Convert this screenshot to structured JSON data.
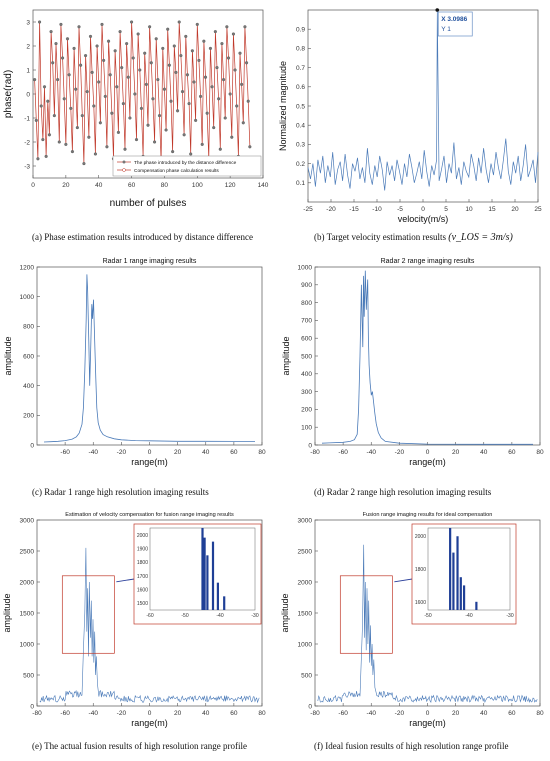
{
  "captions": {
    "a": "(a) Phase estimation results introduced by distance difference",
    "b": "(b) Target velocity estimation results",
    "b_formula": "(v_LOS = 3m/s)",
    "c": "(c) Radar 1 range high resolution imaging results",
    "d": "(d) Radar 2 range high resolution imaging results",
    "e": "(e) The actual fusion results of high resolution range profile",
    "f": "(f) Ideal fusion results of high resolution range profile"
  },
  "colors": {
    "line": "#4a7ab8",
    "red": "#c0392b",
    "mark": "#777777",
    "zoom_bar": "#1f3f96"
  },
  "chart_data": [
    {
      "id": "a",
      "type": "line",
      "title": "",
      "xlabel": "number of pulses",
      "ylabel": "phase(rad)",
      "xlim": [
        0,
        140
      ],
      "ylim": [
        -3.5,
        3.5
      ],
      "xticks": [
        0,
        20,
        40,
        60,
        80,
        100,
        120,
        140
      ],
      "yticks": [
        -3,
        -2,
        -1,
        0,
        1,
        2,
        3
      ],
      "series": [
        {
          "name": "The phase introduced by the distance difference",
          "style": "markers",
          "values": [
            0.6,
            -1.1,
            -2.7,
            3.0,
            -0.5,
            -1.9,
            0.3,
            -2.6,
            -0.3,
            -1.7,
            2.6,
            1.3,
            -0.9,
            2.1,
            0.6,
            -2.0,
            2.9,
            1.5,
            -0.2,
            -2.1,
            2.3,
            0.8,
            -0.6,
            -2.4,
            1.9,
            0.2,
            -1.4,
            2.8,
            1.2,
            -0.9,
            -2.9,
            1.6,
            0.1,
            -1.8,
            2.4,
            0.9,
            -0.5,
            -2.5,
            2.0,
            0.5,
            -1.2,
            2.9,
            1.4,
            -0.1,
            -2.2,
            2.2,
            0.8,
            -0.8,
            -2.7,
            1.8,
            0.3,
            -1.6,
            2.6,
            1.1,
            -0.4,
            -2.3,
            2.1,
            0.7,
            -1.0,
            3.0,
            1.5,
            0.0,
            -1.9,
            2.5,
            1.0,
            -0.6,
            -2.6,
            1.7,
            0.4,
            -1.3,
            2.8,
            1.3,
            -0.2,
            -2.0,
            2.3,
            0.6,
            -0.9,
            -2.8,
            1.9,
            0.2,
            -1.5,
            2.7,
            1.2,
            -0.3,
            -2.4,
            2.0,
            0.9,
            -0.7,
            3.0,
            1.6,
            0.1,
            -1.7,
            2.4,
            0.8,
            -0.4,
            -2.5,
            1.8,
            0.5,
            -1.1,
            2.9,
            1.4,
            -0.1,
            -2.1,
            2.2,
            0.7,
            -0.8,
            -2.7,
            1.9,
            0.3,
            -1.4,
            2.6,
            1.1,
            -0.2,
            -2.3,
            2.1,
            0.6,
            -1.0,
            2.8,
            1.5,
            0.0,
            -1.8,
            2.5,
            1.0,
            -0.5,
            -2.6,
            1.7,
            0.4,
            -1.2,
            2.8,
            1.3,
            -0.3,
            -2.2
          ]
        },
        {
          "name": "Compensation phase calculation results",
          "style": "line"
        }
      ],
      "legend": "bottom-right"
    },
    {
      "id": "b",
      "type": "line",
      "title": "",
      "xlabel": "velocity(m/s)",
      "ylabel": "Normalized magnitude",
      "xlim": [
        -25,
        25
      ],
      "ylim": [
        0,
        1
      ],
      "xticks": [
        -25,
        -20,
        -15,
        -10,
        -5,
        0,
        5,
        10,
        15,
        20,
        25
      ],
      "yticks": [
        0.1,
        0.2,
        0.3,
        0.4,
        0.5,
        0.6,
        0.7,
        0.8,
        0.9
      ],
      "peak": {
        "x": 3.0986,
        "y": 1
      },
      "datatip": {
        "x_label": "X 3.0986",
        "y_label": "Y 1"
      },
      "noise": [
        0.18,
        0.12,
        0.2,
        0.08,
        0.22,
        0.15,
        0.24,
        0.1,
        0.19,
        0.13,
        0.26,
        0.09,
        0.17,
        0.21,
        0.11,
        0.25,
        0.14,
        0.07,
        0.2,
        0.16,
        0.23,
        0.12,
        0.18,
        0.1,
        0.28,
        0.15,
        0.09,
        0.19,
        0.13,
        0.24,
        0.17,
        0.06,
        0.21,
        0.14,
        0.19,
        0.11,
        0.22,
        0.16,
        0.09,
        0.2,
        0.13,
        0.25,
        0.18,
        0.1,
        0.15,
        0.21,
        0.12,
        0.27,
        0.16,
        0.08,
        0.19,
        0.14,
        0.22,
        0.11,
        0.17,
        0.24,
        0.1,
        0.2,
        0.15,
        0.31,
        0.12,
        0.18,
        0.09,
        0.21,
        0.16,
        0.13,
        0.25,
        0.19,
        0.11,
        0.23,
        0.15,
        0.28,
        0.17,
        0.1,
        0.2,
        0.14,
        0.26,
        0.18,
        0.12,
        0.22,
        0.33,
        0.16,
        0.09,
        0.21,
        0.15,
        0.24,
        0.11,
        0.19,
        0.3,
        0.13,
        0.17,
        0.22,
        0.1,
        0.26
      ]
    },
    {
      "id": "c",
      "type": "line",
      "title": "Radar 1 range imaging results",
      "xlabel": "range(m)",
      "ylabel": "amplitude",
      "xlim": [
        -80,
        80
      ],
      "ylim": [
        0,
        1200
      ],
      "xticks": [
        -60,
        -40,
        -20,
        0,
        20,
        40,
        60,
        80
      ],
      "yticks": [
        0,
        200,
        400,
        600,
        800,
        1000,
        1200
      ],
      "points": [
        [
          -75,
          20
        ],
        [
          -70,
          22
        ],
        [
          -65,
          25
        ],
        [
          -60,
          30
        ],
        [
          -55,
          40
        ],
        [
          -52,
          55
        ],
        [
          -50,
          80
        ],
        [
          -48,
          140
        ],
        [
          -47,
          250
        ],
        [
          -46,
          500
        ],
        [
          -45,
          850
        ],
        [
          -44.5,
          1150
        ],
        [
          -44,
          1050
        ],
        [
          -43.2,
          700
        ],
        [
          -42.5,
          400
        ],
        [
          -41.8,
          650
        ],
        [
          -41,
          950
        ],
        [
          -40.5,
          850
        ],
        [
          -39.8,
          980
        ],
        [
          -39,
          700
        ],
        [
          -38.2,
          450
        ],
        [
          -37.5,
          250
        ],
        [
          -36.5,
          150
        ],
        [
          -35,
          100
        ],
        [
          -33,
          70
        ],
        [
          -30,
          55
        ],
        [
          -25,
          42
        ],
        [
          -20,
          35
        ],
        [
          -10,
          30
        ],
        [
          0,
          28
        ],
        [
          20,
          25
        ],
        [
          40,
          25
        ],
        [
          60,
          24
        ],
        [
          75,
          24
        ]
      ]
    },
    {
      "id": "d",
      "type": "line",
      "title": "Radar 2 range imaging results",
      "xlabel": "range(m)",
      "ylabel": "amplitude",
      "xlim": [
        -80,
        80
      ],
      "ylim": [
        0,
        1000
      ],
      "xticks": [
        -80,
        -60,
        -40,
        -20,
        0,
        20,
        40,
        60,
        80
      ],
      "yticks": [
        0,
        100,
        200,
        300,
        400,
        500,
        600,
        700,
        800,
        900,
        1000
      ],
      "points": [
        [
          -75,
          10
        ],
        [
          -70,
          12
        ],
        [
          -60,
          15
        ],
        [
          -55,
          20
        ],
        [
          -52,
          30
        ],
        [
          -50,
          60
        ],
        [
          -49,
          200
        ],
        [
          -48,
          500
        ],
        [
          -47,
          900
        ],
        [
          -46.5,
          700
        ],
        [
          -46,
          550
        ],
        [
          -45.5,
          950
        ],
        [
          -45,
          720
        ],
        [
          -44.2,
          980
        ],
        [
          -43.5,
          760
        ],
        [
          -43,
          850
        ],
        [
          -42.5,
          930
        ],
        [
          -42,
          600
        ],
        [
          -41.5,
          450
        ],
        [
          -40.8,
          350
        ],
        [
          -40,
          280
        ],
        [
          -39.2,
          300
        ],
        [
          -38.5,
          250
        ],
        [
          -37.5,
          180
        ],
        [
          -36.5,
          120
        ],
        [
          -35,
          70
        ],
        [
          -33,
          40
        ],
        [
          -30,
          20
        ],
        [
          -20,
          10
        ],
        [
          0,
          5
        ],
        [
          40,
          4
        ],
        [
          75,
          4
        ]
      ]
    },
    {
      "id": "e",
      "type": "line",
      "title": "Estimation of velocity compensation for fusion range imaging results",
      "xlabel": "range(m)",
      "ylabel": "amplitude",
      "xlim": [
        -80,
        80
      ],
      "ylim": [
        0,
        3000
      ],
      "xticks": [
        -80,
        -60,
        -40,
        -20,
        0,
        20,
        40,
        60,
        80
      ],
      "yticks": [
        0,
        500,
        1000,
        1500,
        2000,
        2500,
        3000
      ],
      "inset": {
        "xlim": [
          -60,
          -30
        ],
        "ylim": [
          1450,
          2050
        ],
        "xticks": [
          -60,
          -50,
          -40,
          -30
        ],
        "yticks": [
          1500,
          1600,
          1700,
          1800,
          1900,
          2000
        ],
        "bars": [
          [
            -45,
            2050
          ],
          [
            -44.4,
            1980
          ],
          [
            -43.6,
            1850
          ],
          [
            -42,
            1950
          ],
          [
            -40.6,
            1650
          ],
          [
            -38.8,
            1550
          ]
        ]
      },
      "peaks": [
        [
          -47,
          900
        ],
        [
          -46,
          1500
        ],
        [
          -45.2,
          2550
        ],
        [
          -44.6,
          1200
        ],
        [
          -44,
          1900
        ],
        [
          -43.4,
          800
        ],
        [
          -42.8,
          2000
        ],
        [
          -42,
          1100
        ],
        [
          -41.4,
          1700
        ],
        [
          -40.8,
          800
        ],
        [
          -40.2,
          1400
        ],
        [
          -39.6,
          700
        ],
        [
          -39,
          1200
        ],
        [
          -38.4,
          500
        ],
        [
          -37.8,
          800
        ],
        [
          -37,
          350
        ]
      ]
    },
    {
      "id": "f",
      "type": "line",
      "title": "Fusion range imaging results for ideal compensation",
      "xlabel": "range(m)",
      "ylabel": "amplitude",
      "xlim": [
        -80,
        80
      ],
      "ylim": [
        0,
        3000
      ],
      "xticks": [
        -80,
        -60,
        -40,
        -20,
        0,
        20,
        40,
        60,
        80
      ],
      "yticks": [
        0,
        500,
        1000,
        1500,
        2000,
        2500,
        3000
      ],
      "inset": {
        "xlim": [
          -50,
          -30
        ],
        "ylim": [
          1550,
          2050
        ],
        "xticks": [
          -50,
          -40,
          -30
        ],
        "yticks": [
          1600,
          1800,
          2000
        ],
        "bars": [
          [
            -44.6,
            2050
          ],
          [
            -43.8,
            1900
          ],
          [
            -42.8,
            2000
          ],
          [
            -42,
            1750
          ],
          [
            -41.2,
            1700
          ],
          [
            -38.2,
            1600
          ]
        ]
      },
      "peaks": [
        [
          -47,
          800
        ],
        [
          -46.2,
          1300
        ],
        [
          -45.4,
          2600
        ],
        [
          -44.8,
          1100
        ],
        [
          -44.2,
          2000
        ],
        [
          -43.6,
          900
        ],
        [
          -43,
          1900
        ],
        [
          -42.4,
          1000
        ],
        [
          -41.8,
          1700
        ],
        [
          -41.2,
          700
        ],
        [
          -40.6,
          1300
        ],
        [
          -40,
          650
        ],
        [
          -39.4,
          1000
        ],
        [
          -38.8,
          500
        ],
        [
          -38.2,
          750
        ],
        [
          -37.4,
          300
        ]
      ]
    }
  ]
}
